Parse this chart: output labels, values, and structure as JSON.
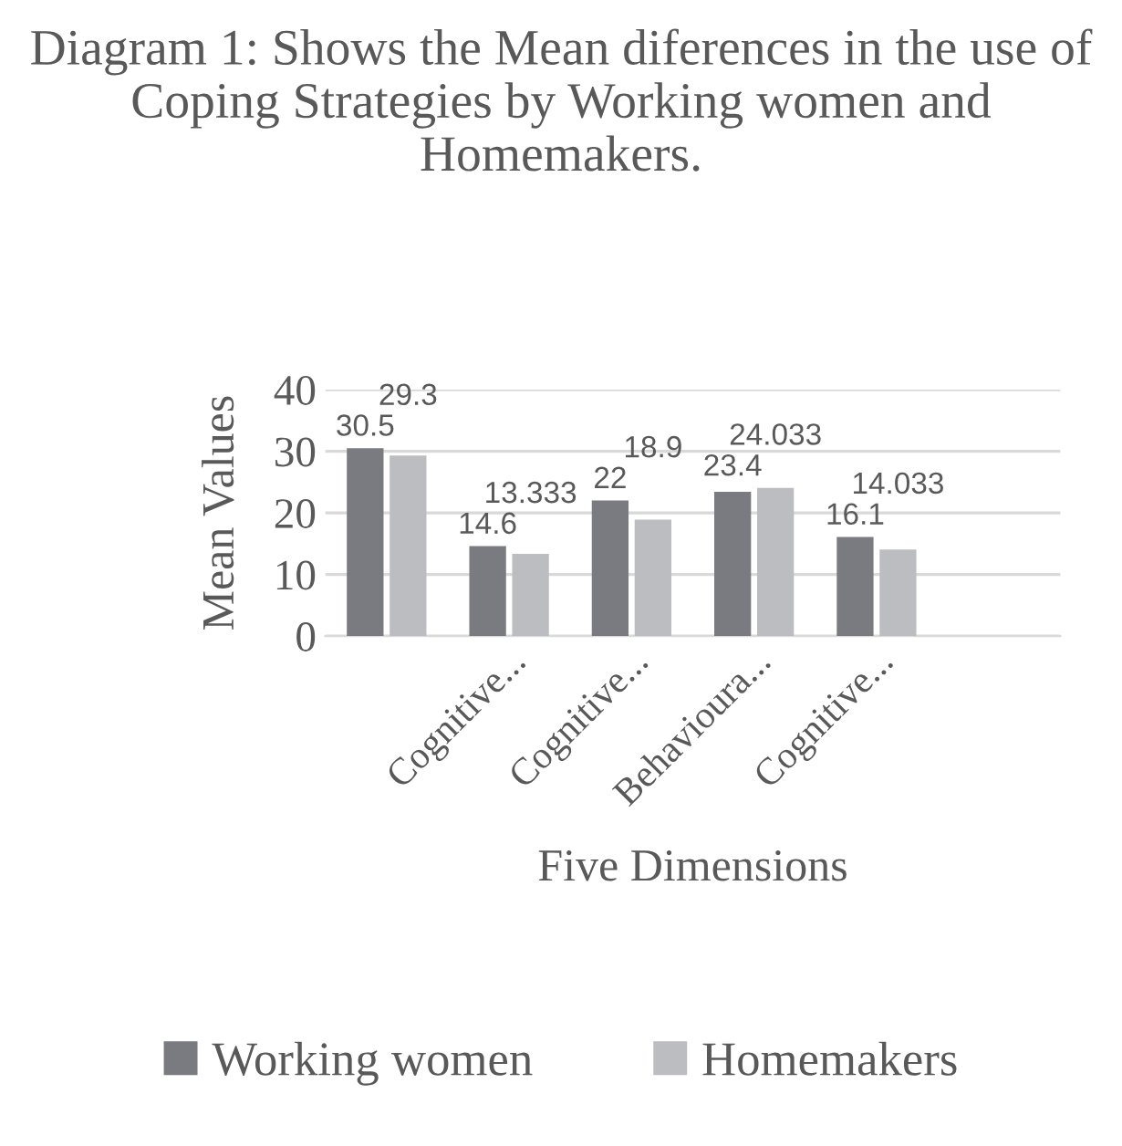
{
  "chart_data": {
    "type": "bar",
    "title": "Diagram 1: Shows the Mean diferences in the use of Coping Strategies by Working women and Homemakers.",
    "xlabel": "Five Dimensions",
    "ylabel": "Mean Values",
    "categories": [
      null,
      "Cognitive...",
      "Cognitive...",
      "Behavioura...",
      "Cognitive...",
      null
    ],
    "series": [
      {
        "name": "Working women",
        "color": "#7a7b80",
        "values": [
          30.5,
          14.6,
          22,
          23.4,
          16.1,
          null
        ]
      },
      {
        "name": "Homemakers",
        "color": "#bcbdc1",
        "values": [
          29.3,
          13.333,
          18.9,
          24.033,
          14.033,
          null
        ]
      }
    ],
    "ylim": [
      0,
      40
    ],
    "yticks": [
      0,
      10,
      20,
      30,
      40
    ],
    "grid": "y",
    "legend": "bottom",
    "data_labels": true
  }
}
